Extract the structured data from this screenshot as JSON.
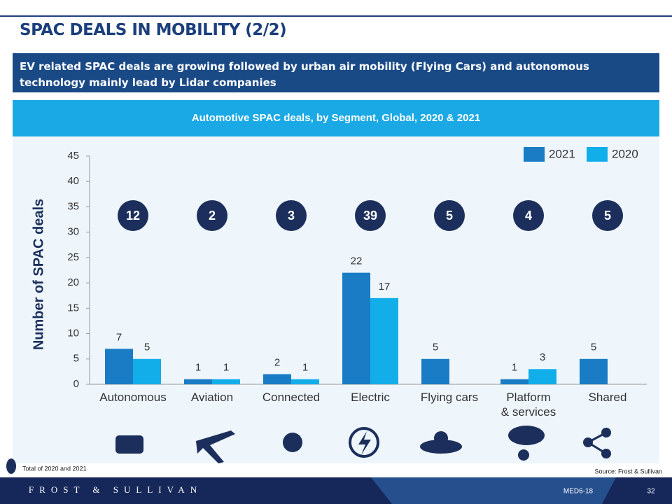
{
  "slide": {
    "title": "SPAC DEALS IN  MOBILITY (2/2)",
    "summary": "EV related SPAC  deals are growing followed by urban air mobility (Flying Cars) and autonomous technology mainly lead by Lidar companies",
    "note": "Total of 2020 and 2021",
    "source": "Source: Frost & Sullivan",
    "logo": "FROST & SULLIVAN",
    "code": "MED6-18",
    "page": "32"
  },
  "chart_data": {
    "type": "bar",
    "title": "Automotive SPAC deals, by Segment, Global, 2020 & 2021",
    "y_label": "Number of SPAC deals",
    "categories": [
      "Autonomous",
      "Aviation",
      "Connected",
      "Electric",
      "Flying cars",
      "Platform\n& services",
      "Shared"
    ],
    "series": [
      {
        "name": "2021",
        "color": "#1a7cc4",
        "values": [
          7,
          1,
          2,
          22,
          5,
          1,
          5
        ]
      },
      {
        "name": "2020",
        "color": "#12aeea",
        "values": [
          5,
          1,
          1,
          17,
          null,
          3,
          null
        ]
      }
    ],
    "totals": [
      12,
      2,
      3,
      39,
      5,
      4,
      5
    ],
    "ylim": [
      0,
      45
    ],
    "yticks": [
      0,
      5,
      10,
      15,
      20,
      25,
      30,
      35,
      40,
      45
    ],
    "grid": false,
    "legend": "top-right"
  }
}
